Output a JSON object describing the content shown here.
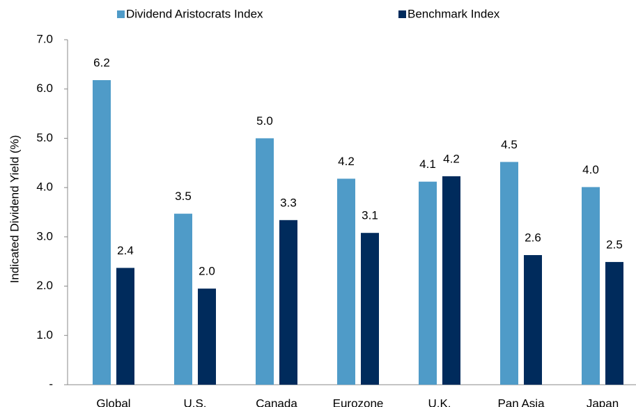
{
  "chart_data": {
    "type": "bar",
    "y_label": "Indicated Dividend Yield (%)",
    "categories": [
      "Global",
      "U.S.",
      "Canada",
      "Eurozone",
      "U.K.",
      "Pan Asia",
      "Japan"
    ],
    "series": [
      {
        "name": "Dividend Aristocrats Index",
        "color": "#4f9bc8",
        "values": [
          6.18,
          3.47,
          5.0,
          4.18,
          4.12,
          4.52,
          4.01
        ],
        "value_labels": [
          "6.2",
          "3.5",
          "5.0",
          "4.2",
          "4.1",
          "4.5",
          "4.0"
        ]
      },
      {
        "name": "Benchmark Index",
        "color": "#002b5c",
        "values": [
          2.37,
          1.95,
          3.34,
          3.08,
          4.23,
          2.63,
          2.49
        ],
        "value_labels": [
          "2.4",
          "2.0",
          "3.3",
          "3.1",
          "4.2",
          "2.6",
          "2.5"
        ]
      }
    ],
    "ylim": [
      0,
      7
    ],
    "yticks": [
      {
        "value": 0,
        "label": "-"
      },
      {
        "value": 1,
        "label": "1.0"
      },
      {
        "value": 2,
        "label": "2.0"
      },
      {
        "value": 3,
        "label": "3.0"
      },
      {
        "value": 4,
        "label": "4.0"
      },
      {
        "value": 5,
        "label": "5.0"
      },
      {
        "value": 6,
        "label": "6.0"
      },
      {
        "value": 7,
        "label": "7.0"
      }
    ],
    "legend": "top"
  }
}
